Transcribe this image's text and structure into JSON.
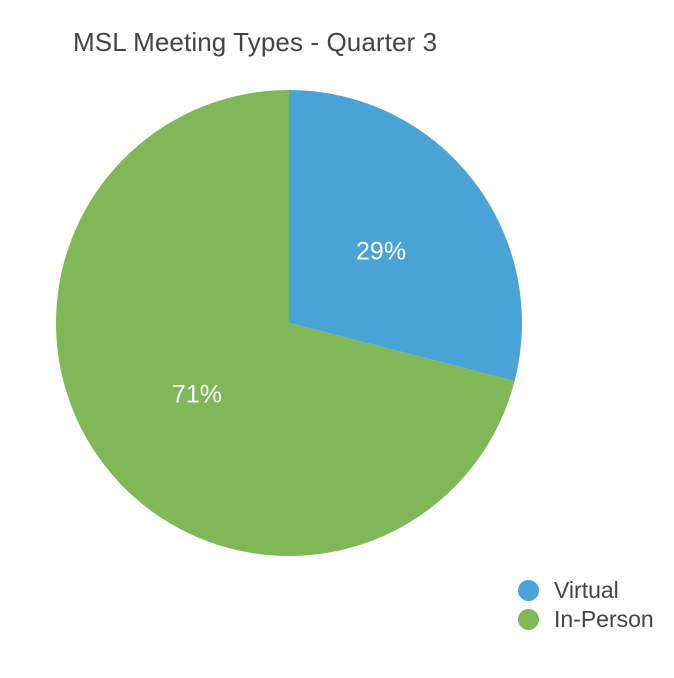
{
  "chart_data": {
    "type": "pie",
    "title": "MSL Meeting Types - Quarter 3",
    "categories": [
      "Virtual",
      "In-Person"
    ],
    "values": [
      29,
      71
    ],
    "labels": [
      "29%",
      "71%"
    ],
    "colors": [
      "#4aa3d6",
      "#80b857"
    ],
    "legend": "bottom-right",
    "start_angle": "12 o'clock",
    "direction": "clockwise"
  }
}
